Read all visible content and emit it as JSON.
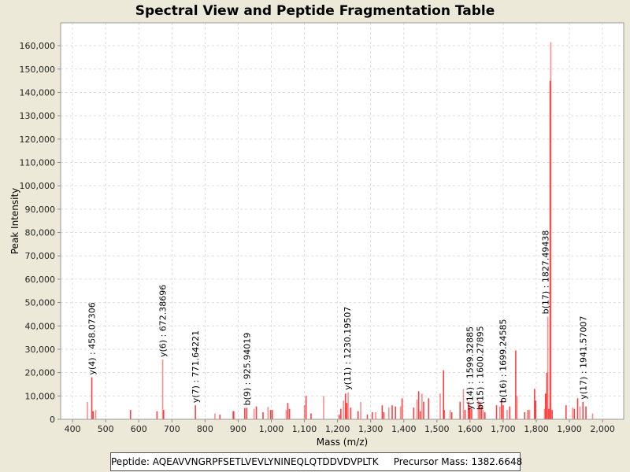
{
  "chart_data": {
    "type": "bar",
    "title": "Spectral View and Peptide Fragmentation Table",
    "xlabel": "Mass (m/z)",
    "ylabel": "Peak Intensity",
    "xlim": [
      364,
      2064
    ],
    "ylim": [
      0,
      169800
    ],
    "xticks": [
      400,
      500,
      600,
      700,
      800,
      900,
      1000,
      1100,
      1200,
      1300,
      1400,
      1500,
      1600,
      1700,
      1800,
      1900,
      2000
    ],
    "yticks": [
      0,
      10000,
      20000,
      30000,
      40000,
      50000,
      60000,
      70000,
      80000,
      90000,
      100000,
      110000,
      120000,
      130000,
      140000,
      150000,
      160000
    ],
    "grid": true,
    "peak_color": "#ff0000",
    "peaks": [
      [
        445,
        7400
      ],
      [
        458,
        18000
      ],
      [
        462,
        3500
      ],
      [
        470,
        4000
      ],
      [
        575,
        4000
      ],
      [
        655,
        3400
      ],
      [
        672,
        25600
      ],
      [
        675,
        4000
      ],
      [
        771,
        6000
      ],
      [
        830,
        2500
      ],
      [
        845,
        2000
      ],
      [
        885,
        3500
      ],
      [
        888,
        3500
      ],
      [
        920,
        4800
      ],
      [
        926,
        4900
      ],
      [
        948,
        4500
      ],
      [
        955,
        5500
      ],
      [
        975,
        3000
      ],
      [
        990,
        5300
      ],
      [
        998,
        4000
      ],
      [
        1003,
        4000
      ],
      [
        1045,
        4000
      ],
      [
        1050,
        7000
      ],
      [
        1055,
        4500
      ],
      [
        1100,
        6000
      ],
      [
        1105,
        10000
      ],
      [
        1120,
        2500
      ],
      [
        1158,
        10000
      ],
      [
        1205,
        2000
      ],
      [
        1210,
        4500
      ],
      [
        1218,
        8000
      ],
      [
        1224,
        11000
      ],
      [
        1228,
        7000
      ],
      [
        1232,
        11500
      ],
      [
        1240,
        5000
      ],
      [
        1262,
        3500
      ],
      [
        1270,
        7400
      ],
      [
        1290,
        2000
      ],
      [
        1305,
        3000
      ],
      [
        1315,
        3000
      ],
      [
        1335,
        6000
      ],
      [
        1340,
        3000
      ],
      [
        1355,
        5000
      ],
      [
        1365,
        6000
      ],
      [
        1375,
        5500
      ],
      [
        1390,
        5500
      ],
      [
        1395,
        9000
      ],
      [
        1430,
        5000
      ],
      [
        1440,
        8500
      ],
      [
        1445,
        12000
      ],
      [
        1450,
        3500
      ],
      [
        1455,
        11000
      ],
      [
        1460,
        7500
      ],
      [
        1475,
        9000
      ],
      [
        1510,
        11000
      ],
      [
        1520,
        21000
      ],
      [
        1522,
        4000
      ],
      [
        1540,
        4000
      ],
      [
        1545,
        3000
      ],
      [
        1570,
        7500
      ],
      [
        1580,
        13000
      ],
      [
        1585,
        4000
      ],
      [
        1595,
        7500
      ],
      [
        1598,
        6000
      ],
      [
        1600,
        4500
      ],
      [
        1605,
        4500
      ],
      [
        1625,
        8000
      ],
      [
        1630,
        7500
      ],
      [
        1635,
        5500
      ],
      [
        1640,
        4000
      ],
      [
        1645,
        3000
      ],
      [
        1680,
        6000
      ],
      [
        1690,
        5500
      ],
      [
        1695,
        8500
      ],
      [
        1700,
        6000
      ],
      [
        1712,
        4000
      ],
      [
        1720,
        5500
      ],
      [
        1738,
        29500
      ],
      [
        1742,
        10000
      ],
      [
        1765,
        3000
      ],
      [
        1775,
        4000
      ],
      [
        1780,
        4000
      ],
      [
        1795,
        13000
      ],
      [
        1798,
        8000
      ],
      [
        1825,
        4500
      ],
      [
        1828,
        11000
      ],
      [
        1832,
        20000
      ],
      [
        1835,
        44000
      ],
      [
        1838,
        4500
      ],
      [
        1842,
        145000
      ],
      [
        1844,
        161500
      ],
      [
        1848,
        4000
      ],
      [
        1890,
        6000
      ],
      [
        1910,
        5000
      ],
      [
        1915,
        4500
      ],
      [
        1925,
        9000
      ],
      [
        1932,
        5500
      ],
      [
        1941,
        7500
      ],
      [
        1950,
        5500
      ],
      [
        1970,
        2500
      ]
    ],
    "annotations": [
      {
        "label": "y(4) : 458.07306",
        "mz": 458,
        "intensity": 18000
      },
      {
        "label": "y(6) : 672.38696",
        "mz": 672,
        "intensity": 25600
      },
      {
        "label": "y(7) : 771.64221",
        "mz": 771,
        "intensity": 6000
      },
      {
        "label": "b(9) : 925.94019",
        "mz": 926,
        "intensity": 4900
      },
      {
        "label": "y(11) : 1230.19507",
        "mz": 1230,
        "intensity": 11500
      },
      {
        "label": "y(14) : 1599.32885",
        "mz": 1599,
        "intensity": 3000
      },
      {
        "label": "b(15) : 1600.27895",
        "mz": 1600,
        "intensity": 3000
      },
      {
        "label": "b(16) : 1699.24585",
        "mz": 1699,
        "intensity": 6000
      },
      {
        "label": "b(17) : 1827.49438",
        "mz": 1827,
        "intensity": 44000
      },
      {
        "label": "y(17) : 1941.57007",
        "mz": 1941,
        "intensity": 7500
      }
    ]
  },
  "legend": {
    "peptide_label": "Peptide: AQEAVVNGRPFSETLVEVLYNINEQLQTDDVDVPLTK",
    "precursor_label": "Precursor Mass: 1382.6648"
  }
}
